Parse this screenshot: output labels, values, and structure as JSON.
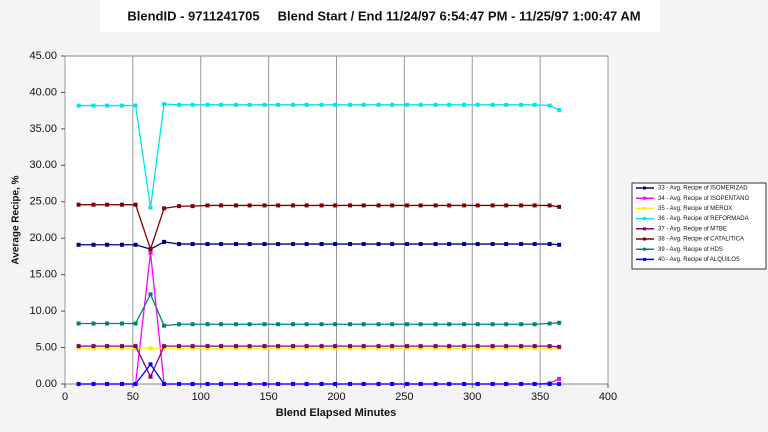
{
  "chart_data": {
    "type": "line",
    "title": "BlendID - 9711241705     Blend Start / End 11/24/97 6:54:47 PM - 11/25/97 1:00:47 AM",
    "x_label": "Blend Elapsed Minutes",
    "y_label": "Average Recipe, %",
    "x": [
      10,
      21,
      31,
      42,
      52,
      63,
      73,
      84,
      94,
      105,
      115,
      126,
      136,
      147,
      157,
      168,
      178,
      189,
      199,
      210,
      220,
      231,
      241,
      252,
      262,
      273,
      283,
      294,
      304,
      315,
      325,
      336,
      346,
      357,
      364
    ],
    "xlim": [
      0,
      400
    ],
    "xticks": [
      0,
      50,
      100,
      150,
      200,
      250,
      300,
      350,
      400
    ],
    "ylim": [
      0,
      45
    ],
    "yticks": [
      {
        "value": 0,
        "label": "0.00"
      },
      {
        "value": 5,
        "label": "5.00"
      },
      {
        "value": 10,
        "label": "10.00"
      },
      {
        "value": 15,
        "label": "15.00"
      },
      {
        "value": 20,
        "label": "20.00"
      },
      {
        "value": 25,
        "label": "25.00"
      },
      {
        "value": 30,
        "label": "30.00"
      },
      {
        "value": 35,
        "label": "35.00"
      },
      {
        "value": 40,
        "label": "40.00"
      },
      {
        "value": 45,
        "label": "45.00"
      }
    ],
    "grid": "x",
    "legend": "right",
    "series": [
      {
        "name": "33 - Avg. Recipe of ISOMERIZAD",
        "color": "#000080",
        "values": [
          19.1,
          19.1,
          19.1,
          19.1,
          19.1,
          18.5,
          19.5,
          19.2,
          19.2,
          19.2,
          19.2,
          19.2,
          19.2,
          19.2,
          19.2,
          19.2,
          19.2,
          19.2,
          19.2,
          19.2,
          19.2,
          19.2,
          19.2,
          19.2,
          19.2,
          19.2,
          19.2,
          19.2,
          19.2,
          19.2,
          19.2,
          19.2,
          19.2,
          19.2,
          19.1
        ]
      },
      {
        "name": "34 - Avg. Recipe of ISOPENTANO",
        "color": "#ff00ff",
        "values": [
          0,
          0,
          0,
          0,
          0,
          18,
          0,
          0,
          0,
          0,
          0,
          0,
          0,
          0,
          0,
          0,
          0,
          0,
          0,
          0,
          0,
          0,
          0,
          0,
          0,
          0,
          0,
          0,
          0,
          0,
          0,
          0,
          0,
          0.1,
          0.7
        ]
      },
      {
        "name": "35 - Avg. Recipe of MEROX",
        "color": "#ffee00",
        "values": [
          4.9,
          4.9,
          4.9,
          4.9,
          4.9,
          4.9,
          4.9,
          4.9,
          4.9,
          4.9,
          4.9,
          4.9,
          4.9,
          4.9,
          4.9,
          4.9,
          4.9,
          4.9,
          4.9,
          4.9,
          4.9,
          4.9,
          4.9,
          4.9,
          4.9,
          4.9,
          4.9,
          4.9,
          4.9,
          4.9,
          4.9,
          4.9,
          4.9,
          4.9,
          4.9
        ]
      },
      {
        "name": "36 - Avg. Recipe of REFORMADA",
        "color": "#00e5ee",
        "values": [
          38.2,
          38.2,
          38.2,
          38.2,
          38.2,
          24.2,
          38.4,
          38.3,
          38.3,
          38.3,
          38.3,
          38.3,
          38.3,
          38.3,
          38.3,
          38.3,
          38.3,
          38.3,
          38.3,
          38.3,
          38.3,
          38.3,
          38.3,
          38.3,
          38.3,
          38.3,
          38.3,
          38.3,
          38.3,
          38.3,
          38.3,
          38.3,
          38.3,
          38.2,
          37.6
        ]
      },
      {
        "name": "37 - Avg. Recipe of MTBE",
        "color": "#800080",
        "values": [
          5.2,
          5.2,
          5.2,
          5.2,
          5.2,
          1,
          5.2,
          5.2,
          5.2,
          5.2,
          5.2,
          5.2,
          5.2,
          5.2,
          5.2,
          5.2,
          5.2,
          5.2,
          5.2,
          5.2,
          5.2,
          5.2,
          5.2,
          5.2,
          5.2,
          5.2,
          5.2,
          5.2,
          5.2,
          5.2,
          5.2,
          5.2,
          5.2,
          5.2,
          5.1
        ]
      },
      {
        "name": "38 - Avg. Recipe of CATALITICA",
        "color": "#800000",
        "values": [
          24.6,
          24.6,
          24.6,
          24.6,
          24.6,
          18.5,
          24.1,
          24.4,
          24.4,
          24.5,
          24.5,
          24.5,
          24.5,
          24.5,
          24.5,
          24.5,
          24.5,
          24.5,
          24.5,
          24.5,
          24.5,
          24.5,
          24.5,
          24.5,
          24.5,
          24.5,
          24.5,
          24.5,
          24.5,
          24.5,
          24.5,
          24.5,
          24.5,
          24.5,
          24.3
        ]
      },
      {
        "name": "39 - Avg. Recipe of HDS",
        "color": "#008080",
        "values": [
          8.3,
          8.3,
          8.3,
          8.3,
          8.3,
          12.3,
          8.0,
          8.2,
          8.2,
          8.2,
          8.2,
          8.2,
          8.2,
          8.2,
          8.2,
          8.2,
          8.2,
          8.2,
          8.2,
          8.2,
          8.2,
          8.2,
          8.2,
          8.2,
          8.2,
          8.2,
          8.2,
          8.2,
          8.2,
          8.2,
          8.2,
          8.2,
          8.2,
          8.3,
          8.4
        ]
      },
      {
        "name": "40 - Avg. Recipe of ALQUILOS",
        "color": "#0000ff",
        "values": [
          0,
          0,
          0,
          0,
          0,
          2.7,
          0,
          0,
          0,
          0,
          0,
          0,
          0,
          0,
          0,
          0,
          0,
          0,
          0,
          0,
          0,
          0,
          0,
          0,
          0,
          0,
          0,
          0,
          0,
          0,
          0,
          0,
          0,
          0,
          0
        ]
      }
    ]
  }
}
